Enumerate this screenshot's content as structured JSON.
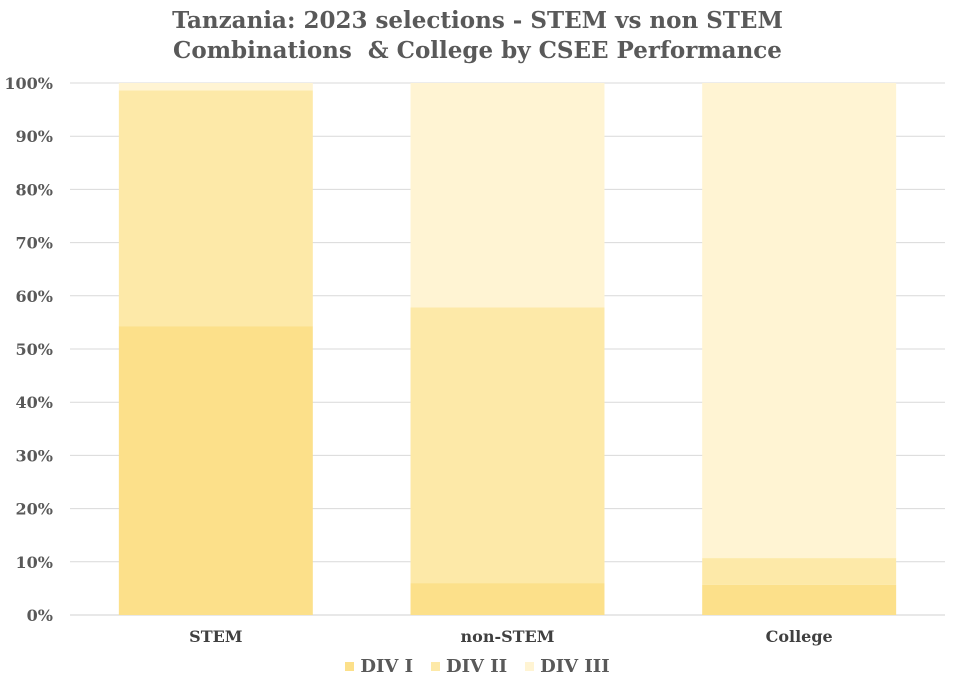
{
  "chart_data": {
    "type": "bar",
    "stacked": true,
    "title_line1": "Tanzania: 2023 selections - STEM vs non STEM",
    "title_line2": "Combinations  & College by CSEE Performance",
    "categories": [
      "STEM",
      "non-STEM",
      "College"
    ],
    "series": [
      {
        "name": "DIV I",
        "color": "#fce08a",
        "values": [
          54.3,
          6.0,
          5.7
        ]
      },
      {
        "name": "DIV II",
        "color": "#fde9a8",
        "values": [
          44.3,
          51.8,
          5.0
        ]
      },
      {
        "name": "DIV III",
        "color": "#fff4d3",
        "values": [
          1.4,
          42.2,
          89.3
        ]
      }
    ],
    "ylim": [
      0,
      100
    ],
    "yticks": [
      "0%",
      "10%",
      "20%",
      "30%",
      "40%",
      "50%",
      "60%",
      "70%",
      "80%",
      "90%",
      "100%"
    ],
    "grid": true,
    "legend_position": "bottom"
  }
}
